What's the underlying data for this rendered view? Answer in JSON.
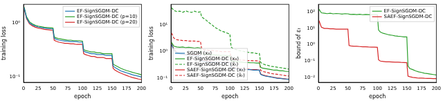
{
  "chart_data": [
    {
      "type": "line",
      "x_label": "epoch",
      "y_label": "training loss",
      "log": "y",
      "grid": false,
      "legend": "upper right",
      "xlim": [
        0,
        200
      ],
      "xticks": [
        0,
        25,
        50,
        75,
        100,
        125,
        150,
        175,
        200
      ],
      "ylim": [
        0.08,
        2.2
      ],
      "yticks": [
        {
          "value": 0.1,
          "label": "10⁻¹"
        },
        {
          "value": 1,
          "label": "10⁰"
        }
      ],
      "x": [
        1,
        5,
        10,
        15,
        20,
        25,
        30,
        35,
        40,
        45,
        50,
        52,
        55,
        60,
        65,
        70,
        75,
        80,
        85,
        90,
        95,
        100,
        102,
        105,
        110,
        115,
        120,
        125,
        130,
        135,
        140,
        145,
        150,
        152,
        155,
        160,
        165,
        170,
        175,
        180,
        185,
        190,
        195,
        200
      ],
      "series": [
        {
          "name": "EF-SignSGDM-DC",
          "color": "#1f77b4",
          "line_style": "solid",
          "values": [
            1.9,
            1.25,
            1.0,
            0.92,
            0.87,
            0.84,
            0.82,
            0.8,
            0.79,
            0.78,
            0.77,
            0.52,
            0.5,
            0.48,
            0.47,
            0.46,
            0.46,
            0.45,
            0.45,
            0.45,
            0.44,
            0.44,
            0.3,
            0.29,
            0.28,
            0.27,
            0.27,
            0.26,
            0.26,
            0.26,
            0.25,
            0.25,
            0.25,
            0.16,
            0.15,
            0.14,
            0.13,
            0.125,
            0.12,
            0.115,
            0.11,
            0.107,
            0.104,
            0.1
          ]
        },
        {
          "name": "EF-SignSGDM-DC (p=10)",
          "color": "#2ca02c",
          "line_style": "solid",
          "values": [
            1.95,
            1.3,
            1.05,
            0.96,
            0.9,
            0.87,
            0.85,
            0.83,
            0.82,
            0.81,
            0.8,
            0.55,
            0.53,
            0.51,
            0.5,
            0.49,
            0.48,
            0.48,
            0.47,
            0.47,
            0.47,
            0.46,
            0.32,
            0.31,
            0.3,
            0.29,
            0.29,
            0.28,
            0.28,
            0.27,
            0.27,
            0.27,
            0.27,
            0.175,
            0.165,
            0.155,
            0.145,
            0.138,
            0.132,
            0.127,
            0.122,
            0.118,
            0.114,
            0.11
          ]
        },
        {
          "name": "EF-SignSGDM-DC (p=20)",
          "color": "#d62728",
          "line_style": "solid",
          "values": [
            1.85,
            1.2,
            0.96,
            0.88,
            0.83,
            0.8,
            0.78,
            0.76,
            0.75,
            0.74,
            0.73,
            0.48,
            0.46,
            0.44,
            0.43,
            0.42,
            0.42,
            0.41,
            0.41,
            0.4,
            0.4,
            0.4,
            0.27,
            0.26,
            0.25,
            0.24,
            0.24,
            0.23,
            0.23,
            0.23,
            0.22,
            0.22,
            0.22,
            0.145,
            0.135,
            0.125,
            0.118,
            0.112,
            0.107,
            0.102,
            0.098,
            0.095,
            0.092,
            0.09
          ]
        }
      ]
    },
    {
      "type": "line",
      "x_label": "epoch",
      "y_label": "training loss",
      "log": "y",
      "grid": false,
      "legend": "lower left",
      "xlim": [
        0,
        200
      ],
      "xticks": [
        0,
        25,
        50,
        75,
        100,
        125,
        150,
        175,
        200
      ],
      "ylim": [
        0.07,
        60
      ],
      "yticks": [
        {
          "value": 0.1,
          "label": "10⁻¹"
        },
        {
          "value": 1,
          "label": "10⁰"
        },
        {
          "value": 10,
          "label": "10¹"
        }
      ],
      "x": [
        1,
        5,
        10,
        15,
        20,
        25,
        30,
        35,
        40,
        45,
        50,
        52,
        55,
        60,
        65,
        70,
        75,
        80,
        85,
        90,
        95,
        100,
        102,
        105,
        110,
        115,
        120,
        125,
        130,
        135,
        140,
        145,
        150,
        152,
        155,
        160,
        165,
        170,
        175,
        180,
        185,
        190,
        195,
        200
      ],
      "series": [
        {
          "name": "SGDM (x₀)",
          "color": "#1f77b4",
          "line_style": "solid",
          "values": [
            1.9,
            1.1,
            0.9,
            0.82,
            0.78,
            0.75,
            0.73,
            0.72,
            0.71,
            0.7,
            0.7,
            0.45,
            0.43,
            0.42,
            0.41,
            0.4,
            0.4,
            0.39,
            0.39,
            0.39,
            0.38,
            0.38,
            0.25,
            0.24,
            0.23,
            0.22,
            0.22,
            0.21,
            0.21,
            0.21,
            0.2,
            0.2,
            0.2,
            0.14,
            0.13,
            0.12,
            0.115,
            0.11,
            0.105,
            0.1,
            0.098,
            0.095,
            0.093,
            0.09
          ]
        },
        {
          "name": "EF-SignSGDM-DC (x₀)",
          "color": "#2ca02c",
          "line_style": "solid",
          "values": [
            2.2,
            1.6,
            1.5,
            1.45,
            1.5,
            1.4,
            1.45,
            1.4,
            1.35,
            1.4,
            1.35,
            0.85,
            0.8,
            0.78,
            0.76,
            0.75,
            0.74,
            0.73,
            0.72,
            0.72,
            0.71,
            0.7,
            0.45,
            0.43,
            0.42,
            0.41,
            0.4,
            0.39,
            0.39,
            0.38,
            0.38,
            0.37,
            0.37,
            0.26,
            0.24,
            0.23,
            0.22,
            0.21,
            0.2,
            0.2,
            0.19,
            0.19,
            0.18,
            0.18
          ]
        },
        {
          "name": "EF-SignSGDM-DC (x̃ₜ)",
          "color": "#2ca02c",
          "line_style": "dashed",
          "values": [
            45,
            35,
            32,
            33,
            30,
            34,
            31,
            30,
            33,
            30,
            31,
            20,
            18,
            15,
            12,
            10,
            8,
            7,
            6,
            5.5,
            5,
            4.5,
            1.5,
            1.3,
            1.2,
            1.1,
            1.05,
            1,
            0.95,
            0.9,
            0.9,
            0.85,
            0.85,
            0.4,
            0.35,
            0.32,
            0.3,
            0.28,
            0.27,
            0.26,
            0.25,
            0.24,
            0.23,
            0.22
          ]
        },
        {
          "name": "SAEF-SignSGDM-DC (x₀)",
          "color": "#d62728",
          "line_style": "solid",
          "values": [
            2.0,
            1.2,
            0.95,
            0.86,
            0.81,
            0.78,
            0.76,
            0.75,
            0.74,
            0.73,
            0.72,
            0.47,
            0.45,
            0.44,
            0.43,
            0.42,
            0.41,
            0.41,
            0.4,
            0.4,
            0.4,
            0.39,
            0.26,
            0.25,
            0.24,
            0.23,
            0.23,
            0.22,
            0.22,
            0.21,
            0.21,
            0.21,
            0.2,
            0.145,
            0.135,
            0.125,
            0.118,
            0.112,
            0.107,
            0.103,
            0.1,
            0.097,
            0.094,
            0.092
          ]
        },
        {
          "name": "SAEF-SignSGDM-DC (x̃ₜ)",
          "color": "#d62728",
          "line_style": "dashed",
          "values": [
            5,
            3.2,
            2.8,
            2.7,
            2.6,
            2.6,
            2.5,
            2.5,
            2.5,
            2.4,
            2.4,
            1.3,
            1.2,
            1.15,
            1.1,
            1.1,
            1.05,
            1.05,
            1.0,
            1.0,
            1.0,
            1.0,
            0.55,
            0.52,
            0.5,
            0.49,
            0.48,
            0.47,
            0.46,
            0.46,
            0.45,
            0.45,
            0.44,
            0.2,
            0.18,
            0.17,
            0.16,
            0.15,
            0.145,
            0.14,
            0.135,
            0.13,
            0.125,
            0.12
          ]
        }
      ]
    },
    {
      "type": "line",
      "x_label": "epoch",
      "y_label": "bound of εₜ",
      "log": "y",
      "grid": false,
      "legend": "upper right",
      "xlim": [
        0,
        200
      ],
      "xticks": [
        0,
        25,
        50,
        75,
        100,
        125,
        150,
        175,
        200
      ],
      "ylim": [
        0.005,
        300
      ],
      "yticks": [
        {
          "value": 0.01,
          "label": "10⁻²"
        },
        {
          "value": 0.1,
          "label": "10⁻¹"
        },
        {
          "value": 1,
          "label": "10⁰"
        },
        {
          "value": 10,
          "label": "10¹"
        },
        {
          "value": 100,
          "label": "10²"
        }
      ],
      "x": [
        1,
        5,
        10,
        15,
        20,
        25,
        30,
        35,
        40,
        45,
        50,
        52,
        55,
        60,
        65,
        70,
        75,
        80,
        85,
        90,
        95,
        100,
        102,
        105,
        110,
        115,
        120,
        125,
        130,
        135,
        140,
        145,
        150,
        152,
        155,
        160,
        165,
        170,
        175,
        180,
        185,
        190,
        195,
        200
      ],
      "series": [
        {
          "name": "EF-SignSGDM-DC",
          "color": "#2ca02c",
          "line_style": "solid",
          "values": [
            150,
            90,
            85,
            80,
            85,
            78,
            82,
            80,
            76,
            80,
            78,
            75,
            72,
            74,
            70,
            73,
            69,
            71,
            70,
            68,
            70,
            69,
            8,
            6,
            5,
            4.5,
            4,
            3.8,
            3.5,
            3.3,
            3.2,
            3,
            3,
            0.05,
            0.035,
            0.03,
            0.025,
            0.022,
            0.02,
            0.018,
            0.017,
            0.016,
            0.015,
            0.014
          ]
        },
        {
          "name": "SAEF-SignSGDM-DC",
          "color": "#d62728",
          "line_style": "solid",
          "values": [
            30,
            12,
            10,
            10,
            9.5,
            9.5,
            9,
            9,
            9,
            9,
            9,
            0.9,
            0.85,
            0.8,
            0.8,
            0.78,
            0.75,
            0.75,
            0.73,
            0.72,
            0.72,
            0.7,
            0.12,
            0.1,
            0.095,
            0.09,
            0.09,
            0.088,
            0.085,
            0.085,
            0.083,
            0.082,
            0.08,
            0.012,
            0.011,
            0.01,
            0.0095,
            0.009,
            0.009,
            0.0088,
            0.0087,
            0.0086,
            0.0085,
            0.0085
          ]
        }
      ]
    }
  ]
}
